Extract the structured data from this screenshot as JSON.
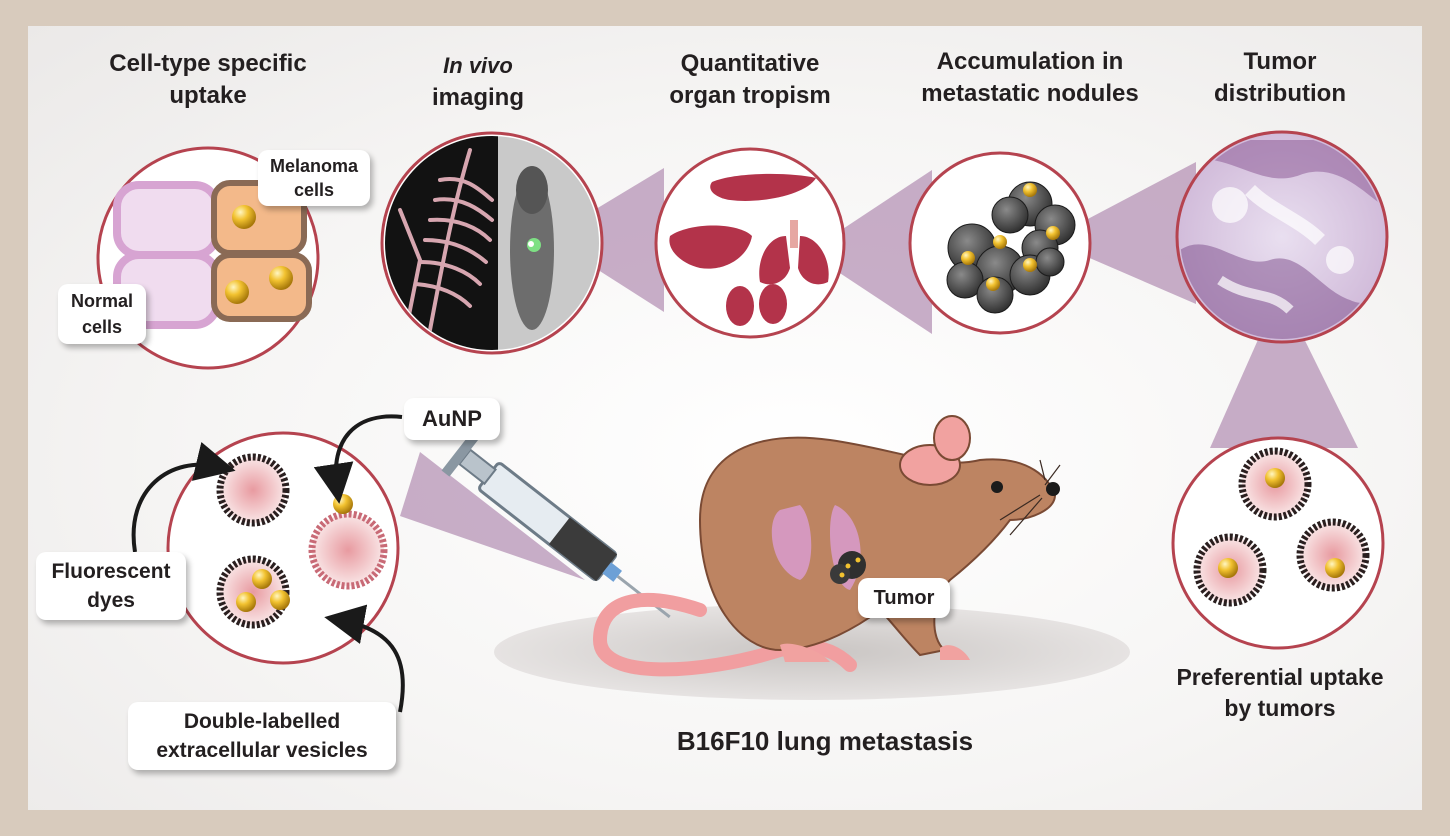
{
  "headings": {
    "cell_type_line1": "Cell-type specific",
    "cell_type_line2": "uptake",
    "in_vivo_line1": "In vivo",
    "in_vivo_line2": "imaging",
    "organ_line1": "Quantitative",
    "organ_line2": "organ tropism",
    "nodules_line1": "Accumulation in",
    "nodules_line2": "metastatic nodules",
    "tumor_dist_line1": "Tumor",
    "tumor_dist_line2": "distribution"
  },
  "callouts": {
    "melanoma_line1": "Melanoma",
    "melanoma_line2": "cells",
    "normal_line1": "Normal",
    "normal_line2": "cells",
    "aunp": "AuNP",
    "fluorescent_line1": "Fluorescent",
    "fluorescent_line2": "dyes",
    "double_line1": "Double-labelled",
    "double_line2": "extracellular vesicles",
    "tumor": "Tumor"
  },
  "captions": {
    "model": "B16F10 lung metastasis",
    "preferential_line1": "Preferential uptake",
    "preferential_line2": "by tumors"
  },
  "colors": {
    "page_border": "#d8cbbd",
    "circle_ring": "#b5434f",
    "connector": "#b693b6",
    "gold": "#f2c230",
    "organ": "#b3334a",
    "mouse_fur": "#bd8462"
  }
}
